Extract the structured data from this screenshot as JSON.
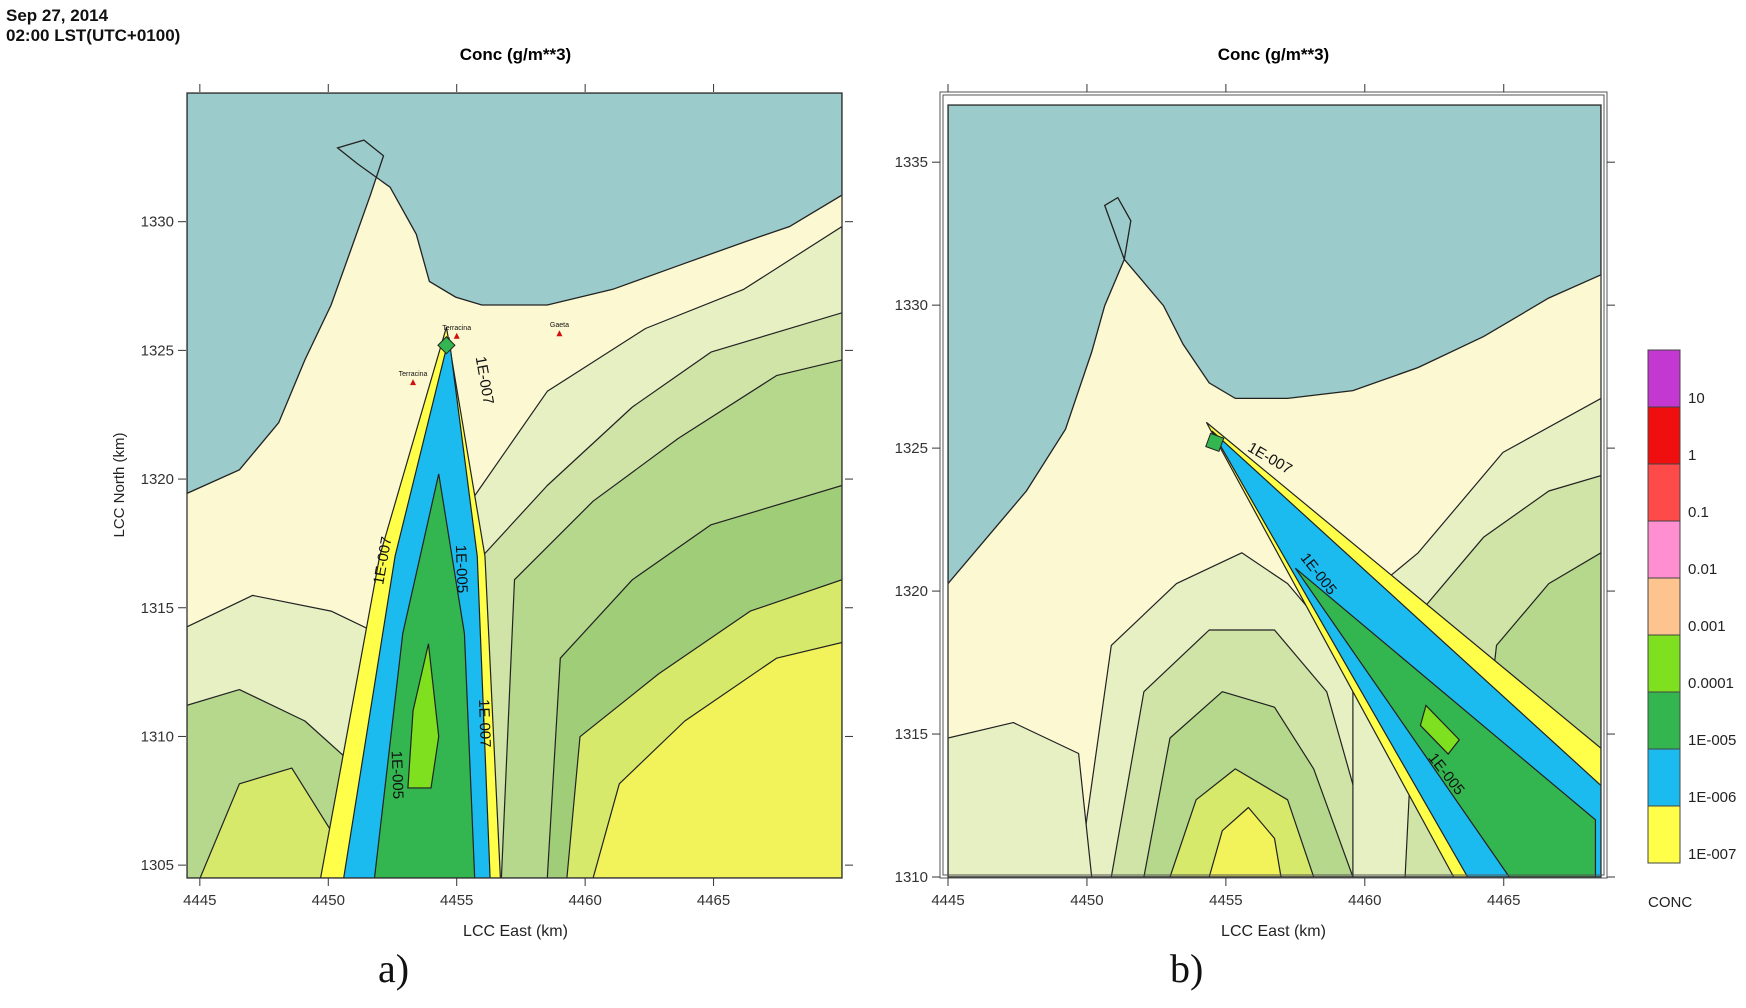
{
  "header": {
    "date": "Sep 27, 2014",
    "time": "02:00 LST(UTC+0100)"
  },
  "panels": [
    {
      "caption": "a)"
    },
    {
      "caption": "b)"
    }
  ],
  "colors": {
    "sea": "#9ccbcb",
    "land": "#fbf8d2",
    "c_1e7": "#ffff4a",
    "c_1e6": "#1bbbf0",
    "c_1e5": "#33b64f",
    "c_1e4": "#7ee01f",
    "c_1e3": "#fdc48f",
    "c_1e2": "#ff8fd0",
    "c_01": "#ff4a4a",
    "c_1": "#ef0f0f",
    "c_10": "#c238d0"
  },
  "legend": {
    "title": "CONC",
    "levels": [
      "10",
      "1",
      "0.1",
      "0.01",
      "0.001",
      "0.0001",
      "1E-005",
      "1E-006",
      "1E-007"
    ]
  },
  "chart_data": [
    {
      "type": "heatmap",
      "title": "Conc (g/m**3)",
      "xlabel": "LCC East (km)",
      "ylabel": "LCC North (km)",
      "xlim": [
        4444.5,
        4470
      ],
      "ylim": [
        1304.5,
        1335
      ],
      "x_ticks": [
        "4445",
        "4450",
        "4455",
        "4460",
        "4465"
      ],
      "y_ticks": [
        "1305",
        "1310",
        "1315",
        "1320",
        "1325",
        "1330"
      ],
      "contour_labels": [
        {
          "text": "1E-007",
          "x": 4455.9,
          "y": 1323.8,
          "angle": 80
        },
        {
          "text": "1E-007",
          "x": 4452.3,
          "y": 1316.8,
          "angle": -80
        },
        {
          "text": "1E-005",
          "x": 4455.0,
          "y": 1316.5,
          "angle": 88
        },
        {
          "text": "1E-007",
          "x": 4455.9,
          "y": 1310.5,
          "angle": 88
        },
        {
          "text": "1E-005",
          "x": 4452.5,
          "y": 1308.5,
          "angle": 88
        }
      ],
      "place_labels": [
        {
          "text": "Terracina",
          "x": 4455.0,
          "y": 1325.8
        },
        {
          "text": "Gaeta",
          "x": 4459.0,
          "y": 1325.9
        },
        {
          "text": "Terracina",
          "x": 4453.3,
          "y": 1324.0
        }
      ]
    },
    {
      "type": "heatmap",
      "title": "Conc (g/m**3)",
      "xlabel": "LCC East (km)",
      "ylabel": "",
      "xlim": [
        4445,
        4468.5
      ],
      "ylim": [
        1310,
        1337
      ],
      "x_ticks": [
        "4445",
        "4450",
        "4455",
        "4460",
        "4465"
      ],
      "y_ticks": [
        "1310",
        "1315",
        "1320",
        "1325",
        "1330",
        "1335"
      ],
      "contour_labels": [
        {
          "text": "1E-007",
          "x": 4456.5,
          "y": 1324.5,
          "angle": 30
        },
        {
          "text": "1E-005",
          "x": 4458.2,
          "y": 1320.5,
          "angle": 52
        },
        {
          "text": "1E-005",
          "x": 4462.8,
          "y": 1313.5,
          "angle": 52
        }
      ]
    }
  ]
}
